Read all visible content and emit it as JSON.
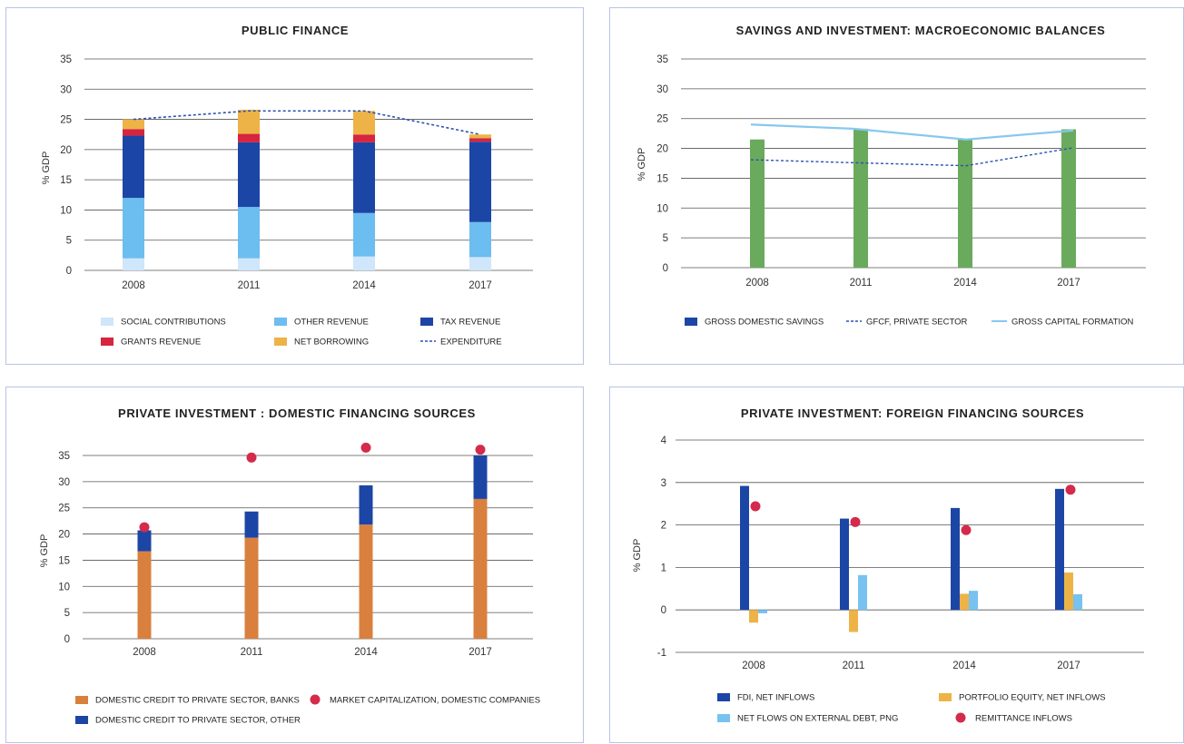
{
  "colors": {
    "social": "#cfe6fb",
    "other_rev": "#6cbdf0",
    "tax": "#1c46a5",
    "grants": "#d7243f",
    "borrow": "#edb347",
    "exp": "#2a50b0",
    "green": "#6aaa5d",
    "gcf": "#86c8ef",
    "banks": "#d9803e",
    "other_credit": "#1c46a5",
    "mktcap": "#d42a4c",
    "fdi": "#1c46a5",
    "portfolio": "#edb347",
    "extdebt": "#77c2f1",
    "remit": "#d42a4c",
    "grid": "#555555"
  },
  "chart_data": [
    {
      "type": "bar",
      "title": "PUBLIC FINANCE",
      "ylabel": "% GDP",
      "ylim": [
        0,
        35
      ],
      "yticks": [
        "0",
        "5",
        "10",
        "15",
        "20",
        "25",
        "30",
        "35"
      ],
      "categories": [
        "2008",
        "2011",
        "2014",
        "2017"
      ],
      "series": [
        {
          "name": "SOCIAL CONTRIBUTIONS",
          "values": [
            2.0,
            2.0,
            2.3,
            2.2
          ]
        },
        {
          "name": "OTHER REVENUE",
          "values": [
            10.0,
            8.5,
            7.2,
            5.8
          ]
        },
        {
          "name": "TAX REVENUE",
          "values": [
            10.3,
            10.7,
            11.7,
            13.3
          ]
        },
        {
          "name": "GRANTS REVENUE",
          "values": [
            1.1,
            1.4,
            1.3,
            0.6
          ]
        },
        {
          "name": "NET BORROWING",
          "values": [
            1.6,
            4.0,
            3.9,
            0.6
          ]
        },
        {
          "name": "EXPENDITURE",
          "values": [
            25.0,
            26.4,
            26.4,
            22.5
          ]
        }
      ],
      "legend": [
        "SOCIAL CONTRIBUTIONS",
        "OTHER REVENUE",
        "TAX REVENUE",
        "GRANTS REVENUE",
        "NET BORROWING",
        "EXPENDITURE"
      ]
    },
    {
      "type": "bar",
      "title": "SAVINGS AND INVESTMENT:  MACROECONOMIC BALANCES",
      "ylabel": "% GDP",
      "ylim": [
        0,
        35
      ],
      "yticks": [
        "0",
        "5",
        "10",
        "15",
        "20",
        "25",
        "30",
        "35"
      ],
      "categories": [
        "2008",
        "2011",
        "2014",
        "2017"
      ],
      "series": [
        {
          "name": "GROSS DOMESTIC SAVINGS",
          "values": [
            21.5,
            23.3,
            21.6,
            23.2
          ]
        },
        {
          "name": "GFCF, PRIVATE SECTOR",
          "values": [
            18.1,
            17.6,
            17.1,
            20.1
          ]
        },
        {
          "name": "GROSS CAPITAL FORMATION",
          "values": [
            24.0,
            23.3,
            21.5,
            23.0
          ]
        }
      ],
      "legend": [
        "GROSS DOMESTIC SAVINGS",
        "GFCF, PRIVATE SECTOR",
        "GROSS CAPITAL FORMATION"
      ]
    },
    {
      "type": "bar",
      "title": "PRIVATE INVESTMENT : DOMESTIC FINANCING SOURCES",
      "ylabel": "% GDP",
      "ylim": [
        0,
        35
      ],
      "yticks": [
        "0",
        "5",
        "10",
        "15",
        "20",
        "25",
        "30",
        "35"
      ],
      "categories": [
        "2008",
        "2011",
        "2014",
        "2017"
      ],
      "series": [
        {
          "name": "DOMESTIC CREDIT TO PRIVATE SECTOR, BANKS",
          "values": [
            16.7,
            19.3,
            21.8,
            26.7
          ]
        },
        {
          "name": "DOMESTIC CREDIT TO PRIVATE SECTOR, OTHER",
          "values": [
            4.0,
            5.0,
            7.5,
            8.3
          ]
        },
        {
          "name": "MARKET CAPITALIZATION, DOMESTIC COMPANIES",
          "values": [
            21.3,
            34.6,
            36.5,
            36.1
          ]
        }
      ],
      "legend": [
        "DOMESTIC CREDIT TO PRIVATE SECTOR, BANKS",
        "MARKET CAPITALIZATION, DOMESTIC COMPANIES",
        "DOMESTIC CREDIT TO PRIVATE SECTOR, OTHER"
      ]
    },
    {
      "type": "bar",
      "title": "PRIVATE INVESTMENT: FOREIGN FINANCING SOURCES",
      "ylabel": "% GDP",
      "ylim": [
        -1,
        4
      ],
      "yticks": [
        "-1",
        "0",
        "1",
        "2",
        "3",
        "4"
      ],
      "categories": [
        "2008",
        "2011",
        "2014",
        "2017"
      ],
      "series": [
        {
          "name": "FDI, NET INFLOWS",
          "values": [
            2.92,
            2.15,
            2.4,
            2.85
          ]
        },
        {
          "name": "PORTFOLIO EQUITY, NET INFLOWS",
          "values": [
            -0.3,
            -0.52,
            0.38,
            0.88
          ]
        },
        {
          "name": "NET FLOWS ON EXTERNAL DEBT, PNG",
          "values": [
            -0.08,
            0.82,
            0.45,
            0.37
          ]
        },
        {
          "name": "REMITTANCE INFLOWS",
          "values": [
            2.44,
            2.07,
            1.88,
            2.83
          ]
        }
      ],
      "legend": [
        "FDI, NET INFLOWS",
        "PORTFOLIO EQUITY, NET INFLOWS",
        "NET FLOWS ON EXTERNAL DEBT, PNG",
        "REMITTANCE INFLOWS"
      ]
    }
  ]
}
